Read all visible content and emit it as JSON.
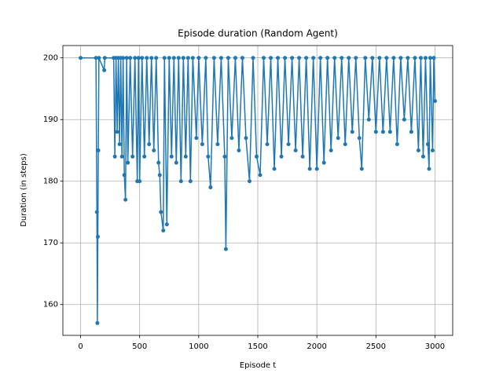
{
  "chart_data": {
    "type": "line",
    "title": "Episode duration (Random Agent)",
    "xlabel": "Episode t",
    "ylabel": "Duration (in steps)",
    "x": [
      0,
      130,
      138,
      142,
      146,
      150,
      155,
      200,
      205,
      280,
      290,
      300,
      310,
      320,
      330,
      340,
      350,
      360,
      370,
      380,
      390,
      400,
      420,
      440,
      460,
      480,
      490,
      500,
      520,
      540,
      560,
      580,
      600,
      620,
      640,
      660,
      670,
      680,
      700,
      710,
      730,
      750,
      770,
      790,
      810,
      830,
      850,
      870,
      890,
      910,
      930,
      950,
      980,
      1000,
      1030,
      1060,
      1080,
      1100,
      1130,
      1160,
      1190,
      1220,
      1230,
      1250,
      1280,
      1310,
      1340,
      1370,
      1400,
      1430,
      1460,
      1490,
      1520,
      1550,
      1580,
      1610,
      1640,
      1670,
      1700,
      1730,
      1760,
      1790,
      1820,
      1850,
      1880,
      1910,
      1940,
      1970,
      2000,
      2030,
      2060,
      2090,
      2120,
      2150,
      2180,
      2210,
      2240,
      2270,
      2300,
      2330,
      2360,
      2380,
      2410,
      2440,
      2470,
      2500,
      2530,
      2560,
      2590,
      2620,
      2650,
      2680,
      2710,
      2740,
      2770,
      2800,
      2830,
      2860,
      2880,
      2900,
      2920,
      2940,
      2950,
      2960,
      2980,
      2990,
      3000
    ],
    "series": [
      {
        "name": "Duration",
        "color": "#1f77b4",
        "values": [
          200,
          200,
          175,
          157,
          171,
          185,
          200,
          198,
          200,
          200,
          184,
          200,
          188,
          200,
          186,
          200,
          184,
          200,
          181,
          177,
          200,
          183,
          200,
          184,
          200,
          180,
          200,
          180,
          200,
          184,
          200,
          186,
          200,
          185,
          200,
          183,
          181,
          175,
          172,
          200,
          173,
          200,
          184,
          200,
          183,
          200,
          180,
          200,
          184,
          200,
          180,
          200,
          187,
          200,
          186,
          200,
          184,
          179,
          200,
          186,
          200,
          184,
          169,
          200,
          187,
          200,
          185,
          200,
          187,
          180,
          200,
          184,
          181,
          200,
          186,
          200,
          182,
          200,
          184,
          200,
          186,
          200,
          185,
          200,
          184,
          200,
          182,
          200,
          182,
          200,
          183,
          200,
          185,
          200,
          187,
          200,
          186,
          200,
          188,
          200,
          187,
          182,
          200,
          190,
          200,
          188,
          200,
          188,
          200,
          188,
          200,
          186,
          200,
          190,
          200,
          188,
          200,
          185,
          200,
          184,
          200,
          186,
          182,
          200,
          185,
          200,
          193
        ]
      }
    ],
    "xlim": [
      -150,
      3150
    ],
    "ylim": [
      155,
      202
    ],
    "xticks": [
      0,
      500,
      1000,
      1500,
      2000,
      2500,
      3000
    ],
    "yticks": [
      160,
      170,
      180,
      190,
      200
    ],
    "grid": true
  }
}
